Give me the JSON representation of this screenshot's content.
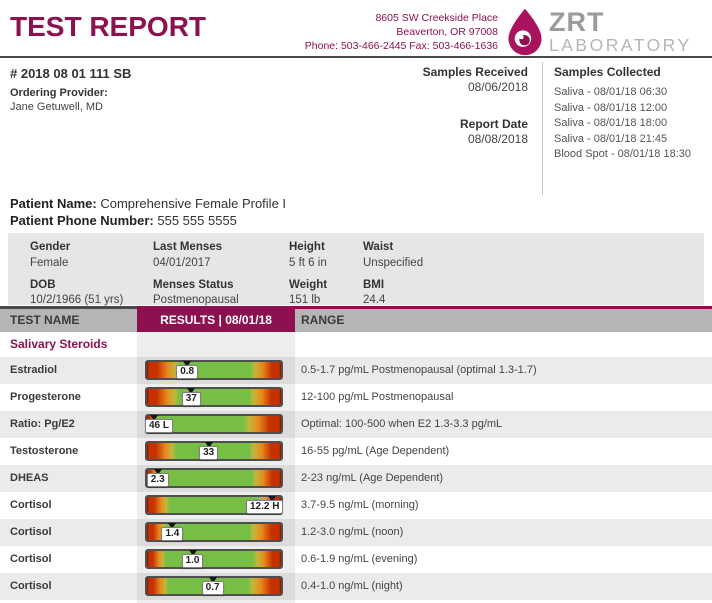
{
  "brand": {
    "title": "TEST REPORT",
    "address_line1": "8605 SW Creekside Place",
    "address_line2": "Beaverton, OR 97008",
    "address_line3": "Phone: 503-466-2445 Fax: 503-466-1636",
    "logo_text": "ZRT",
    "logo_subtext": "LABORATORY",
    "accent_color": "#8e114f",
    "logo_gray": "#9b9b9b"
  },
  "report_meta": {
    "report_id": "# 2018 08 01 111 SB",
    "ordering_provider_label": "Ordering Provider:",
    "ordering_provider": "Jane Getuwell, MD",
    "samples_received_label": "Samples Received",
    "samples_received_date": "08/06/2018",
    "report_date_label": "Report Date",
    "report_date": "08/08/2018",
    "samples_collected_label": "Samples Collected",
    "samples_collected": [
      "Saliva - 08/01/18 06:30",
      "Saliva - 08/01/18 12:00",
      "Saliva - 08/01/18 18:00",
      "Saliva - 08/01/18 21:45",
      "Blood Spot - 08/01/18 18:30"
    ]
  },
  "patient": {
    "name_label": "Patient Name:",
    "name": "Comprehensive Female Profile I",
    "phone_label": "Patient Phone Number:",
    "phone": "555 555 5555",
    "demographics": [
      {
        "label": "Gender",
        "value": "Female"
      },
      {
        "label": "Last Menses",
        "value": "04/01/2017"
      },
      {
        "label": "Height",
        "value": "5 ft 6 in"
      },
      {
        "label": "Waist",
        "value": "Unspecified"
      },
      {
        "label": "DOB",
        "value": "10/2/1966 (51 yrs)"
      },
      {
        "label": "Menses Status",
        "value": "Postmenopausal"
      },
      {
        "label": "Weight",
        "value": "151 lb"
      },
      {
        "label": "BMI",
        "value": "24.4"
      }
    ]
  },
  "results_table": {
    "col_test_name": "TEST NAME",
    "col_results": "RESULTS | 08/01/18",
    "col_range": "RANGE",
    "section_title": "Salivary Steroids",
    "bar_colors": {
      "green": "#76bf44",
      "olive": "#c2b73a",
      "orange": "#e8891c",
      "red": "#c63100",
      "dark_edge": "#7a1500",
      "marker": "#141414"
    },
    "rows": [
      {
        "name": "Estradiol",
        "result": "0.8",
        "range": "0.5-1.7 pg/mL Postmenopausal (optimal 1.3-1.7)",
        "marker_pct": 30,
        "green_start_pct": 25,
        "green_end_pct": 77
      },
      {
        "name": "Progesterone",
        "result": "37",
        "range": "12-100 pg/mL Postmenopausal",
        "marker_pct": 33,
        "green_start_pct": 24,
        "green_end_pct": 76
      },
      {
        "name": "Ratio: Pg/E2",
        "result": "46 L",
        "range": "Optimal: 100-500 when E2 1.3-3.3 pg/mL",
        "marker_pct": 5,
        "green_start_pct": 7,
        "green_end_pct": 72
      },
      {
        "name": "Testosterone",
        "result": "33",
        "range": "16-55 pg/mL (Age Dependent)",
        "marker_pct": 46,
        "green_start_pct": 22,
        "green_end_pct": 76
      },
      {
        "name": "DHEAS",
        "result": "2.3",
        "range": "2-23 ng/mL (Age Dependent)",
        "marker_pct": 8,
        "green_start_pct": 9,
        "green_end_pct": 78
      },
      {
        "name": "Cortisol",
        "result": "12.2 H",
        "range": "3.7-9.5 ng/mL (morning)",
        "marker_pct": 93,
        "green_start_pct": 17,
        "green_end_pct": 83
      },
      {
        "name": "Cortisol",
        "result": "1.4",
        "range": "1.2-3.0 ng/mL (noon)",
        "marker_pct": 19,
        "green_start_pct": 15,
        "green_end_pct": 76
      },
      {
        "name": "Cortisol",
        "result": "1.0",
        "range": "0.6-1.9 ng/mL (evening)",
        "marker_pct": 34,
        "green_start_pct": 14,
        "green_end_pct": 79
      },
      {
        "name": "Cortisol",
        "result": "0.7",
        "range": "0.4-1.0 ng/mL (night)",
        "marker_pct": 49,
        "green_start_pct": 16,
        "green_end_pct": 75
      }
    ]
  }
}
